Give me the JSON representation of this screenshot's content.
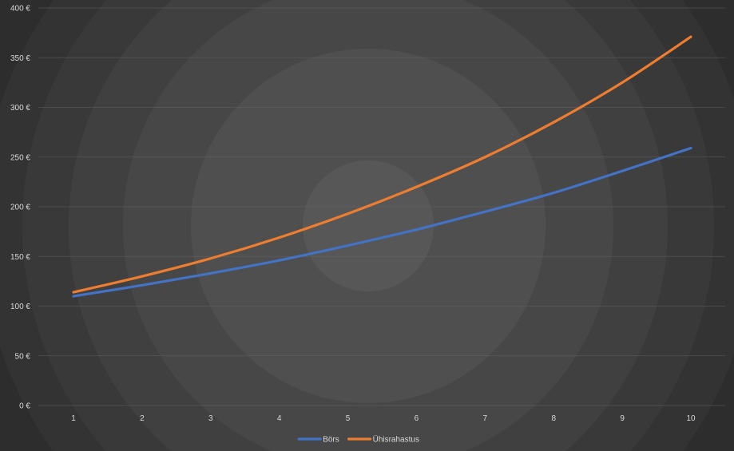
{
  "chart_data": {
    "type": "line",
    "categories": [
      "1",
      "2",
      "3",
      "4",
      "5",
      "6",
      "7",
      "8",
      "9",
      "10"
    ],
    "series": [
      {
        "name": "Börs",
        "color": "#4472c4",
        "values": [
          110,
          121,
          133,
          146,
          161,
          177,
          195,
          214,
          236,
          259
        ]
      },
      {
        "name": "Ühisrahastus",
        "color": "#ed7d31",
        "values": [
          114,
          130,
          148,
          169,
          193,
          220,
          250,
          285,
          325,
          371
        ]
      }
    ],
    "yticks": [
      "0 €",
      "50 €",
      "100 €",
      "150 €",
      "200 €",
      "250 €",
      "300 €",
      "350 €",
      "400 €"
    ],
    "ylim": [
      0,
      400
    ],
    "grid": true,
    "legend_position": "bottom"
  }
}
